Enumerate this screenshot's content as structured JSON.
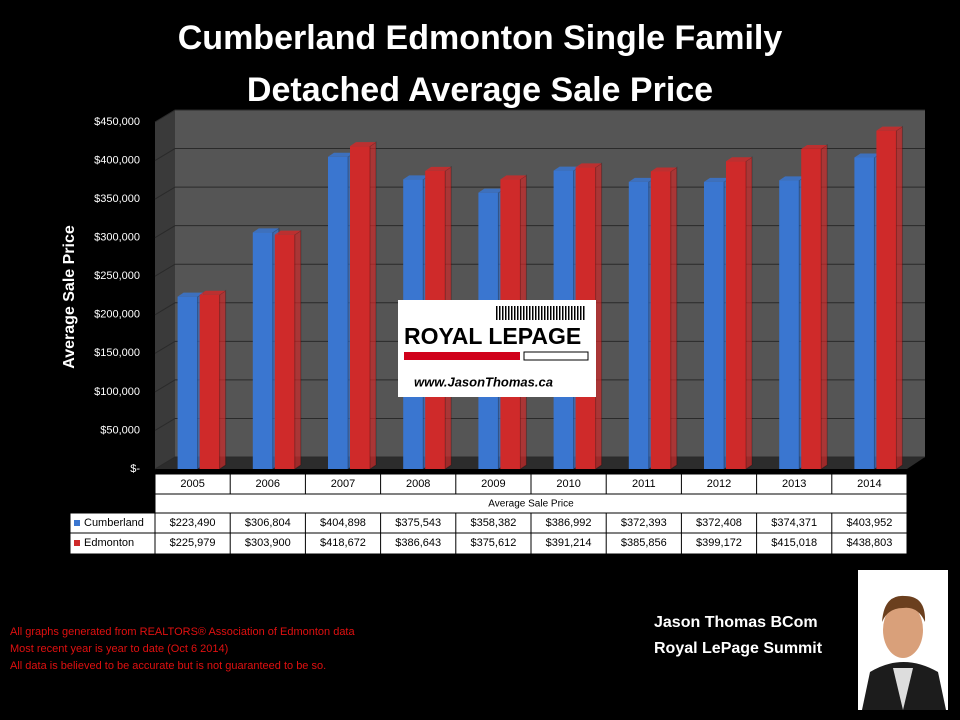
{
  "chart_data": {
    "type": "bar3d",
    "title": "Cumberland Edmonton Single Family",
    "subtitle": "Detached Average Sale Price",
    "y_label": "Average Sale Price",
    "x_label": "Average Sale Price",
    "categories": [
      "2005",
      "2006",
      "2007",
      "2008",
      "2009",
      "2010",
      "2011",
      "2012",
      "2013",
      "2014"
    ],
    "series": [
      {
        "name": "Cumberland",
        "color": "#3a76d0",
        "values": [
          223490,
          306804,
          404898,
          375543,
          358382,
          386992,
          372393,
          372408,
          374371,
          403952
        ],
        "value_labels": [
          "$223,490",
          "$306,804",
          "$404,898",
          "$375,543",
          "$358,382",
          "$386,992",
          "$372,393",
          "$372,408",
          "$374,371",
          "$403,952"
        ]
      },
      {
        "name": "Edmonton",
        "color": "#cf2a2a",
        "values": [
          225979,
          303900,
          418672,
          386643,
          375612,
          391214,
          385856,
          399172,
          415018,
          438803
        ],
        "value_labels": [
          "$225,979",
          "$303,900",
          "$418,672",
          "$386,643",
          "$375,612",
          "$391,214",
          "$385,856",
          "$399,172",
          "$415,018",
          "$438,803"
        ]
      }
    ],
    "ylim": [
      0,
      450000
    ],
    "yticks": [
      {
        "value": 0,
        "label": "$-"
      },
      {
        "value": 50000,
        "label": "$50,000"
      },
      {
        "value": 100000,
        "label": "$100,000"
      },
      {
        "value": 150000,
        "label": "$150,000"
      },
      {
        "value": 200000,
        "label": "$200,000"
      },
      {
        "value": 250000,
        "label": "$250,000"
      },
      {
        "value": 300000,
        "label": "$300,000"
      },
      {
        "value": 350000,
        "label": "$350,000"
      },
      {
        "value": 400000,
        "label": "$400,000"
      },
      {
        "value": 450000,
        "label": "$450,000"
      }
    ],
    "grid": true
  },
  "logo": {
    "brand": "ROYAL LEPAGE",
    "url": "www.JasonThomas.ca"
  },
  "footer": [
    "All graphs generated from REALTORS® Association of Edmonton data",
    "Most recent year is year to date (Oct 6 2014)",
    "All data is believed to be accurate but is not guaranteed to be so."
  ],
  "agent": {
    "name": "Jason Thomas BCom",
    "company": "Royal LePage Summit"
  }
}
